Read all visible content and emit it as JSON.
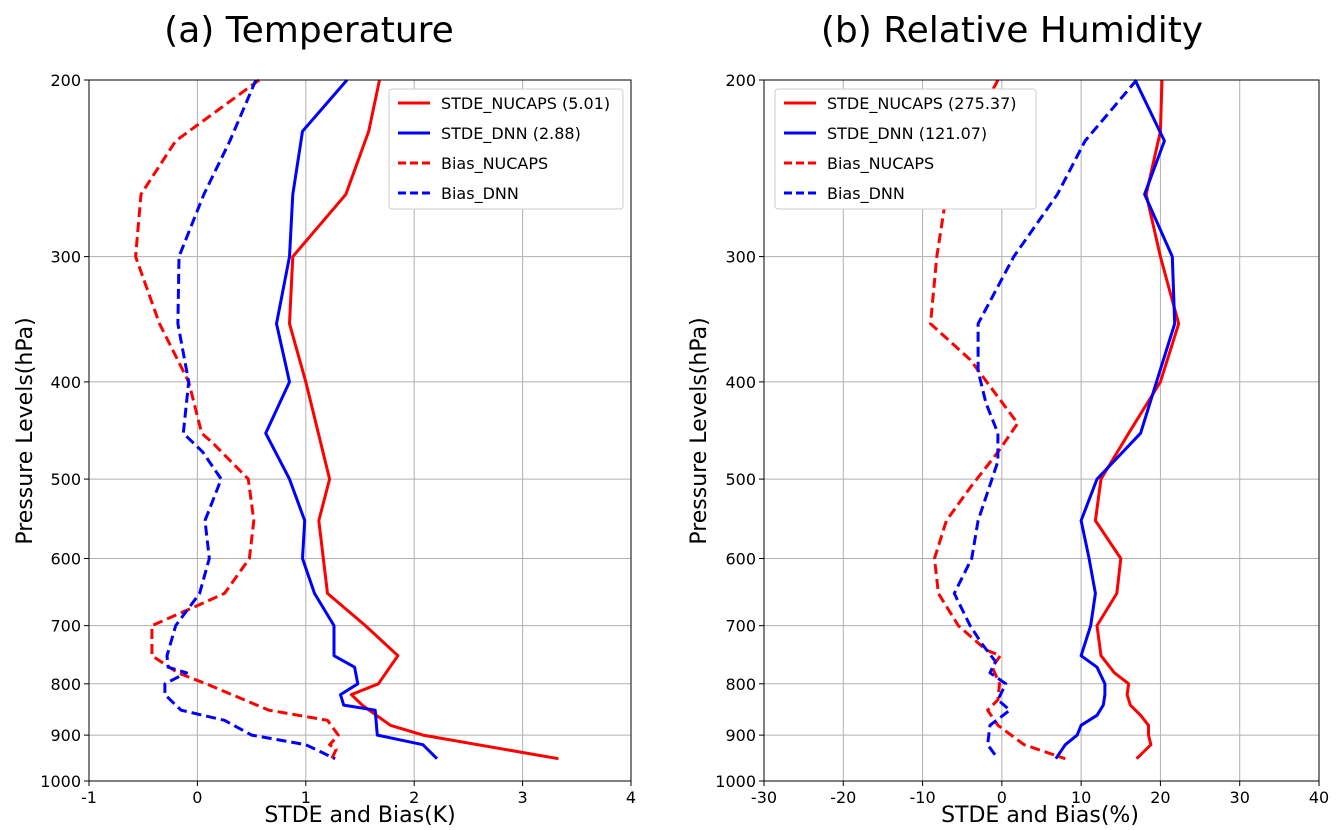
{
  "chart_data": [
    {
      "type": "line",
      "title": "(a) Temperature",
      "xlabel": "STDE and Bias(K)",
      "ylabel": "Pressure Levels(hPa)",
      "xlim": [
        -1,
        4
      ],
      "ylim": [
        1000,
        200
      ],
      "y_scale": "log",
      "x_ticks": [
        "-1",
        "0",
        "1",
        "2",
        "3",
        "4"
      ],
      "y_ticks": [
        "200",
        "300",
        "400",
        "500",
        "600",
        "700",
        "800",
        "900",
        "1000"
      ],
      "grid": true,
      "legend_position": "top-right",
      "series": [
        {
          "name": "STDE_NUCAPS (5.01)",
          "color": "#ff0000",
          "dash": false,
          "x": [
            1.68,
            1.58,
            1.37,
            0.88,
            0.85,
            1.0,
            1.22,
            1.12,
            1.2,
            1.55,
            1.85,
            1.67,
            1.42,
            1.52,
            1.78,
            2.08,
            3.33
          ],
          "y": [
            200,
            225,
            260,
            300,
            350,
            400,
            500,
            550,
            650,
            700,
            750,
            800,
            820,
            840,
            880,
            900,
            950
          ]
        },
        {
          "name": "STDE_DNN (2.88)",
          "color": "#0000ff",
          "dash": false,
          "x": [
            1.38,
            0.97,
            0.88,
            0.85,
            0.73,
            0.85,
            0.63,
            0.85,
            0.99,
            0.97,
            1.08,
            1.26,
            1.26,
            1.45,
            1.48,
            1.32,
            1.35,
            1.64,
            1.66,
            2.08,
            2.21
          ],
          "y": [
            200,
            225,
            260,
            300,
            350,
            400,
            450,
            500,
            550,
            600,
            650,
            700,
            750,
            770,
            800,
            820,
            840,
            850,
            900,
            920,
            950
          ]
        },
        {
          "name": "Bias_NUCAPS",
          "color": "#ff0000",
          "dash": true,
          "x": [
            0.57,
            -0.2,
            -0.52,
            -0.57,
            -0.35,
            -0.08,
            0.04,
            0.14,
            0.47,
            0.52,
            0.48,
            0.25,
            -0.02,
            -0.42,
            -0.42,
            -0.18,
            0.08,
            0.66,
            1.2,
            1.3,
            1.22,
            1.28,
            1.24
          ],
          "y": [
            200,
            230,
            260,
            300,
            350,
            400,
            450,
            460,
            500,
            550,
            600,
            650,
            670,
            700,
            750,
            780,
            800,
            850,
            870,
            900,
            920,
            930,
            950
          ]
        },
        {
          "name": "Bias_DNN",
          "color": "#0000ff",
          "dash": true,
          "x": [
            0.54,
            0.3,
            0.06,
            -0.17,
            -0.18,
            -0.08,
            -0.13,
            0.05,
            0.22,
            0.07,
            0.11,
            0.02,
            -0.2,
            -0.28,
            -0.27,
            -0.1,
            -0.3,
            -0.3,
            -0.15,
            0.25,
            0.5,
            1.0,
            1.27
          ],
          "y": [
            200,
            230,
            260,
            300,
            350,
            400,
            450,
            470,
            500,
            550,
            600,
            650,
            700,
            750,
            770,
            780,
            800,
            820,
            850,
            870,
            900,
            920,
            950
          ]
        }
      ]
    },
    {
      "type": "line",
      "title": "(b) Relative Humidity",
      "xlabel": "STDE and Bias(%)",
      "ylabel": "Pressure Levels(hPa)",
      "xlim": [
        -30,
        40
      ],
      "ylim": [
        1000,
        200
      ],
      "y_scale": "log",
      "x_ticks": [
        "-30",
        "-20",
        "-10",
        "0",
        "10",
        "20",
        "30",
        "40"
      ],
      "y_ticks": [
        "200",
        "300",
        "400",
        "500",
        "600",
        "700",
        "800",
        "900",
        "1000"
      ],
      "grid": true,
      "legend_position": "top-left",
      "series": [
        {
          "name": "STDE_NUCAPS (275.37)",
          "color": "#ff0000",
          "dash": false,
          "x": [
            20.2,
            20.0,
            18.2,
            20.0,
            22.3,
            20.0,
            16.0,
            12.5,
            11.8,
            15.0,
            14.5,
            12.0,
            12.5,
            14.2,
            16.0,
            15.8,
            16.2,
            17.5,
            18.5,
            18.5,
            18.8,
            17.0
          ],
          "y": [
            200,
            225,
            260,
            300,
            350,
            400,
            450,
            500,
            550,
            600,
            650,
            700,
            750,
            780,
            800,
            820,
            840,
            860,
            880,
            900,
            920,
            950
          ]
        },
        {
          "name": "STDE_DNN (121.07)",
          "color": "#0000ff",
          "dash": false,
          "x": [
            16.8,
            20.5,
            18.0,
            21.5,
            21.8,
            19.5,
            17.5,
            12.0,
            10.0,
            11.0,
            11.8,
            11.2,
            10.0,
            12.0,
            13.0,
            13.0,
            12.8,
            12.0,
            10.0,
            9.5,
            8.0,
            6.8
          ],
          "y": [
            200,
            230,
            260,
            300,
            350,
            400,
            450,
            500,
            550,
            600,
            650,
            700,
            750,
            770,
            800,
            820,
            840,
            860,
            880,
            900,
            920,
            950
          ]
        },
        {
          "name": "Bias_NUCAPS",
          "color": "#ff0000",
          "dash": true,
          "x": [
            -0.5,
            -4.5,
            -7.0,
            -8.2,
            -9.0,
            -4.0,
            2.0,
            -0.5,
            -4.0,
            -7.0,
            -8.5,
            -8.0,
            -5.5,
            -2.0,
            -0.2,
            -1.2,
            -0.3,
            -0.5,
            -1.8,
            -0.5,
            2.8,
            8.0
          ],
          "y": [
            200,
            230,
            260,
            300,
            350,
            380,
            440,
            470,
            510,
            550,
            600,
            650,
            700,
            740,
            750,
            770,
            800,
            830,
            850,
            880,
            920,
            950
          ]
        },
        {
          "name": "Bias_DNN",
          "color": "#0000ff",
          "dash": true,
          "x": [
            17.0,
            10.5,
            7.0,
            1.5,
            -3.0,
            -3.0,
            -2.0,
            -0.5,
            -0.5,
            -3.0,
            -3.8,
            -6.0,
            -4.0,
            -2.5,
            -0.8,
            -1.5,
            0.5,
            -0.5,
            1.0,
            -1.5,
            -1.8,
            -0.5
          ],
          "y": [
            200,
            230,
            260,
            300,
            350,
            390,
            420,
            450,
            480,
            550,
            600,
            650,
            700,
            730,
            760,
            780,
            800,
            830,
            850,
            880,
            920,
            950
          ]
        }
      ]
    }
  ]
}
